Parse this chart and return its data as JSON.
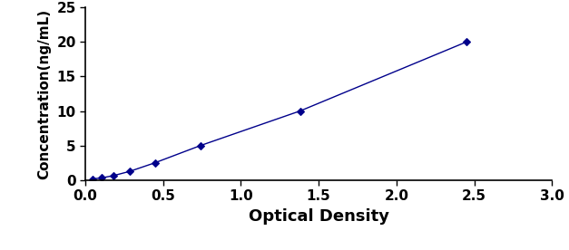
{
  "x": [
    0.047,
    0.106,
    0.179,
    0.285,
    0.448,
    0.741,
    1.38,
    2.449
  ],
  "y": [
    0.156,
    0.312,
    0.625,
    1.25,
    2.5,
    5.0,
    10.0,
    20.0
  ],
  "line_color": "#00008B",
  "marker_style": "D",
  "marker_size": 4,
  "marker_color": "#00008B",
  "xlabel": "Optical Density",
  "ylabel": "Concentration(ng/mL)",
  "xlim": [
    0,
    3
  ],
  "ylim": [
    0,
    25
  ],
  "xticks": [
    0,
    0.5,
    1,
    1.5,
    2,
    2.5,
    3
  ],
  "yticks": [
    0,
    5,
    10,
    15,
    20,
    25
  ],
  "xlabel_fontsize": 13,
  "ylabel_fontsize": 11,
  "tick_fontsize": 11,
  "background_color": "#ffffff"
}
